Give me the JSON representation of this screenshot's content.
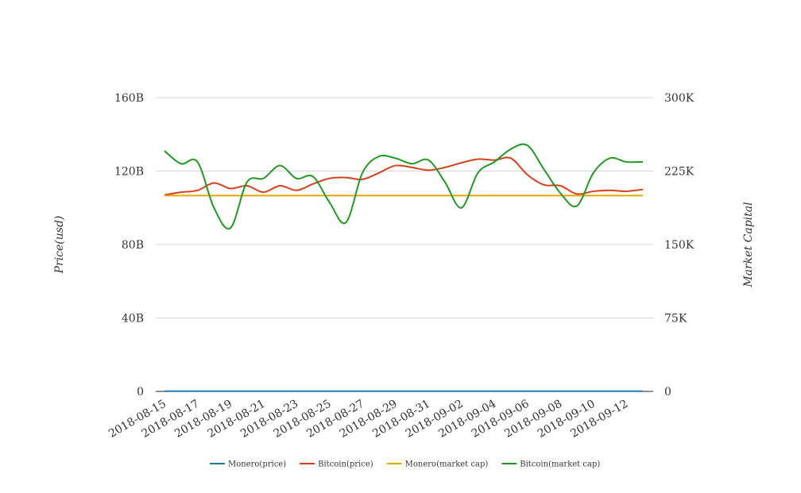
{
  "chart_data": {
    "type": "line",
    "y_left_label": "Price(usd)",
    "y_right_label": "Market Capital",
    "y_left_ticks": [
      "0",
      "40B",
      "80B",
      "120B",
      "160B"
    ],
    "y_right_ticks": [
      "0",
      "75K",
      "150K",
      "225K",
      "300K"
    ],
    "y_left_range": [
      0,
      160
    ],
    "y_right_range": [
      0,
      300
    ],
    "x_tick_labels": [
      "2018-08-15",
      "2018-08-17",
      "2018-08-19",
      "2018-08-21",
      "2018-08-23",
      "2018-08-25",
      "2018-08-27",
      "2018-08-29",
      "2018-08-31",
      "2018-09-02",
      "2018-09-04",
      "2018-09-06",
      "2018-09-08",
      "2018-09-10",
      "2018-09-12"
    ],
    "x": [
      "2018-08-15",
      "2018-08-16",
      "2018-08-17",
      "2018-08-18",
      "2018-08-19",
      "2018-08-20",
      "2018-08-21",
      "2018-08-22",
      "2018-08-23",
      "2018-08-24",
      "2018-08-25",
      "2018-08-26",
      "2018-08-27",
      "2018-08-28",
      "2018-08-29",
      "2018-08-30",
      "2018-08-31",
      "2018-09-01",
      "2018-09-02",
      "2018-09-03",
      "2018-09-04",
      "2018-09-05",
      "2018-09-06",
      "2018-09-07",
      "2018-09-08",
      "2018-09-09",
      "2018-09-10",
      "2018-09-11",
      "2018-09-12",
      "2018-09-13"
    ],
    "grid": true,
    "legend_position": "bottom-center",
    "series": [
      {
        "name": "Monero(price)",
        "axis": "left",
        "color": "#1f77b4",
        "values": [
          0.12,
          0.12,
          0.12,
          0.12,
          0.12,
          0.12,
          0.12,
          0.12,
          0.12,
          0.12,
          0.12,
          0.12,
          0.12,
          0.12,
          0.12,
          0.12,
          0.12,
          0.12,
          0.12,
          0.12,
          0.12,
          0.12,
          0.12,
          0.12,
          0.12,
          0.12,
          0.12,
          0.12,
          0.12,
          0.12
        ]
      },
      {
        "name": "Bitcoin(price)",
        "axis": "left",
        "color": "#d4411a",
        "values": [
          107,
          108.5,
          109.5,
          113.5,
          110.5,
          112,
          108.5,
          112,
          109.5,
          113,
          116,
          116.5,
          115.5,
          119,
          123,
          122,
          120.5,
          122,
          124.5,
          126.5,
          126,
          127,
          118,
          112.5,
          112,
          107.5,
          109,
          109.5,
          109,
          110
        ]
      },
      {
        "name": "Monero(market cap)",
        "axis": "right",
        "color": "#e6a800",
        "values": [
          200,
          200,
          200,
          200,
          200,
          200,
          200,
          200,
          200,
          200,
          200,
          200,
          200,
          200,
          200,
          200,
          200,
          200,
          200,
          200,
          200,
          200,
          200,
          200,
          200,
          200,
          200,
          200,
          200,
          200
        ]
      },
      {
        "name": "Bitcoin(market cap)",
        "axis": "left",
        "color": "#1f9a1f",
        "values": [
          131,
          124,
          125,
          100,
          89,
          114,
          116,
          123,
          116,
          117,
          103,
          92,
          119,
          128,
          127,
          124,
          126,
          114,
          100,
          119,
          125,
          132,
          134,
          121,
          108,
          101,
          119,
          127,
          125,
          125
        ]
      }
    ]
  }
}
